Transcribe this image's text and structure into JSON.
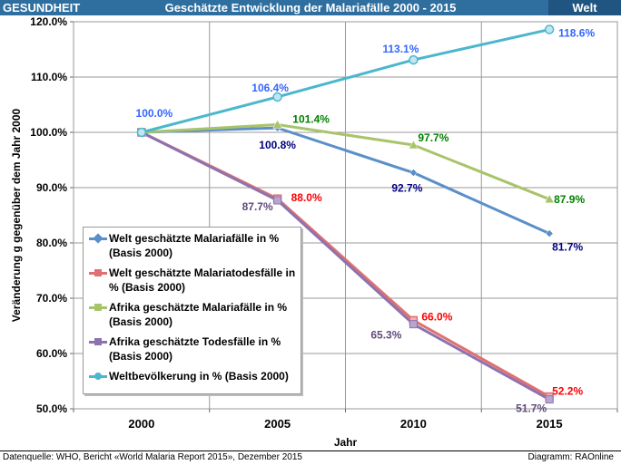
{
  "header": {
    "category": "GESUNDHEIT",
    "title": "Geschätzte Entwicklung der Malariafälle 2000 - 2015",
    "region": "Welt"
  },
  "footer": {
    "source": "Datenquelle: WHO, Bericht «World Malaria Report 2015», Dezember 2015",
    "credit": "Diagramm: RAOnline"
  },
  "chart_data": {
    "type": "line",
    "title": "Geschätzte Entwicklung der Malariafälle 2000 - 2015",
    "xlabel": "Jahr",
    "ylabel": "Veränderung g gegenüber dem Jahr 2000",
    "x": [
      2000,
      2005,
      2010,
      2015
    ],
    "ylim": [
      50,
      120
    ],
    "yticks": [
      "50.0%",
      "60.0%",
      "70.0%",
      "80.0%",
      "90.0%",
      "100.0%",
      "110.0%",
      "120.0%"
    ],
    "grid": true,
    "legend_position": "bottom-left",
    "series": [
      {
        "name": "Welt geschätzte Malariafälle in % (Basis 2000)",
        "color": "#5b8fc9",
        "marker": "diamond",
        "label_color": "#000080",
        "values": [
          100.0,
          100.8,
          92.7,
          81.7
        ],
        "labels": [
          "",
          "100.8%",
          "92.7%",
          "81.7%"
        ]
      },
      {
        "name": "Welt geschätzte Malariatodesfälle in % (Basis 2000)",
        "color": "#e07070",
        "marker": "square",
        "label_color": "#ff0000",
        "values": [
          100.0,
          88.0,
          66.0,
          52.2
        ],
        "labels": [
          "",
          "88.0%",
          "66.0%",
          "52.2%"
        ]
      },
      {
        "name": "Afrika geschätzte Malariafälle in % (Basis 2000)",
        "color": "#a8c46a",
        "marker": "triangle",
        "label_color": "#008000",
        "values": [
          100.0,
          101.4,
          97.7,
          87.9
        ],
        "labels": [
          "",
          "101.4%",
          "97.7%",
          "87.9%"
        ]
      },
      {
        "name": "Afrika geschätzte Todesfälle in % (Basis 2000)",
        "color": "#8e72ae",
        "marker": "x",
        "label_color": "#604a7b",
        "values": [
          100.0,
          87.7,
          65.3,
          51.7
        ],
        "labels": [
          "",
          "87.7%",
          "65.3%",
          "51.7%"
        ]
      },
      {
        "name": "Weltbevölkerung in % (Basis 2000)",
        "color": "#4bb7cc",
        "marker": "circle",
        "label_color": "#3366ff",
        "values": [
          100.0,
          106.4,
          113.1,
          118.6
        ],
        "labels": [
          "100.0%",
          "106.4%",
          "113.1%",
          "118.6%"
        ]
      }
    ]
  }
}
